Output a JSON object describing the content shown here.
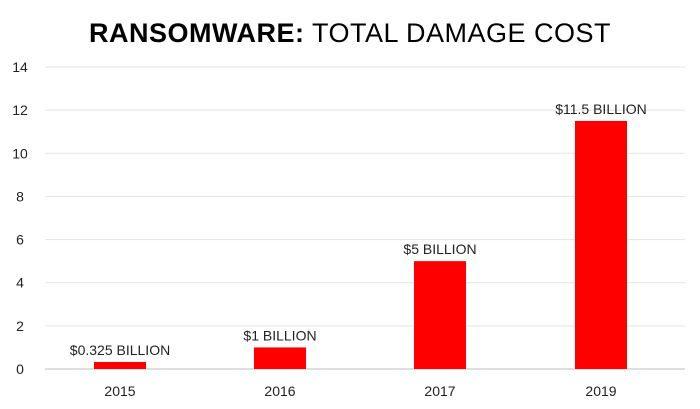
{
  "chart_data": {
    "type": "bar",
    "title_bold": "RANSOMWARE:",
    "title_light": " TOTAL DAMAGE COST",
    "categories": [
      "2015",
      "2016",
      "2017",
      "2019"
    ],
    "values": [
      0.325,
      1,
      5,
      11.5
    ],
    "data_labels": [
      "$0.325 BILLION",
      "$1 BILLION",
      "$5 BILLION",
      "$11.5 BILLION"
    ],
    "ylim": [
      0,
      14
    ],
    "yticks": [
      "0",
      "2",
      "4",
      "6",
      "8",
      "10",
      "12",
      "14"
    ],
    "grid": true,
    "legend": "none",
    "xlabel": "",
    "ylabel": ""
  },
  "colors": {
    "bar": "#ff0000",
    "grid": "#e3e3e3",
    "axis": "#bfbfbf",
    "text": "#222222"
  }
}
